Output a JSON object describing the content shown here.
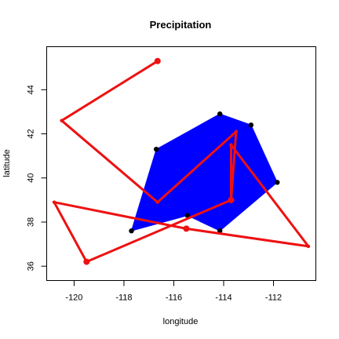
{
  "chart_data": {
    "type": "scatter",
    "title": "Precipitation",
    "xlabel": "longitude",
    "ylabel": "latitude",
    "xlim": [
      -121.1,
      -110.3
    ],
    "ylim": [
      35.35,
      45.95
    ],
    "xticks": [
      -120,
      -118,
      -116,
      -114,
      -112
    ],
    "xtick_labels": [
      "-120",
      "-118",
      "-116",
      "-114",
      "-112"
    ],
    "yticks": [
      36,
      38,
      40,
      42,
      44
    ],
    "ytick_labels": [
      "36",
      "38",
      "40",
      "42",
      "44"
    ],
    "grid": false,
    "colors": {
      "polygon": "#0000ff",
      "path": "#ee1111",
      "points": "#000000"
    },
    "polygon_points": [
      {
        "x": -116.7,
        "y": 41.3
      },
      {
        "x": -114.15,
        "y": 42.9
      },
      {
        "x": -112.9,
        "y": 42.4
      },
      {
        "x": -111.85,
        "y": 39.8
      },
      {
        "x": -114.15,
        "y": 37.6
      },
      {
        "x": -115.45,
        "y": 38.3
      },
      {
        "x": -117.7,
        "y": 37.6
      }
    ],
    "path_points": [
      {
        "x": -116.65,
        "y": 45.3
      },
      {
        "x": -120.5,
        "y": 42.6
      },
      {
        "x": -116.65,
        "y": 38.9
      },
      {
        "x": -113.5,
        "y": 42.1
      },
      {
        "x": -113.7,
        "y": 39.0
      },
      {
        "x": -113.7,
        "y": 41.5
      },
      {
        "x": -110.6,
        "y": 36.9
      },
      {
        "x": -115.5,
        "y": 37.7
      },
      {
        "x": -120.8,
        "y": 38.9
      },
      {
        "x": -119.5,
        "y": 36.2
      },
      {
        "x": -113.7,
        "y": 39.0
      }
    ]
  }
}
